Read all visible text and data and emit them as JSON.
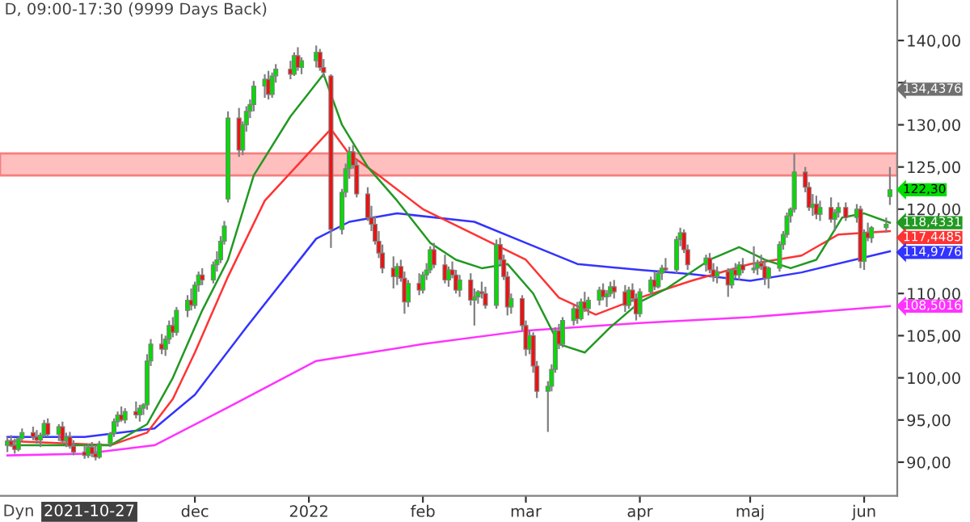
{
  "chart_data": {
    "type": "candlestick",
    "title": "D, 09:00-17:30 (9999 Days Back)",
    "x": [
      "2021-10-11",
      "2021-10-12",
      "2021-10-13",
      "2021-10-14",
      "2021-10-15",
      "2021-10-18",
      "2021-10-19",
      "2021-10-20",
      "2021-10-21",
      "2021-10-22",
      "2021-10-25",
      "2021-10-26",
      "2021-10-27",
      "2021-10-28",
      "2021-10-29",
      "2021-11-01",
      "2021-11-02",
      "2021-11-03",
      "2021-11-04",
      "2021-11-05",
      "2021-11-08",
      "2021-11-09",
      "2021-11-10",
      "2021-11-11",
      "2021-11-12",
      "2021-11-15",
      "2021-11-16",
      "2021-11-17",
      "2021-11-18",
      "2021-11-19",
      "2021-11-22",
      "2021-11-23",
      "2021-11-24",
      "2021-11-25",
      "2021-11-26",
      "2021-11-29",
      "2021-11-30",
      "2021-12-01",
      "2021-12-02",
      "2021-12-03",
      "2021-12-06",
      "2021-12-07",
      "2021-12-08",
      "2021-12-09",
      "2021-12-10",
      "2021-12-13",
      "2021-12-14",
      "2021-12-15",
      "2021-12-16",
      "2021-12-17",
      "2021-12-20",
      "2021-12-21",
      "2021-12-22",
      "2021-12-23",
      "2021-12-27",
      "2021-12-28",
      "2021-12-29",
      "2021-12-30",
      "2022-01-03",
      "2022-01-04",
      "2022-01-05",
      "2022-01-07",
      "2022-01-10",
      "2022-01-11",
      "2022-01-12",
      "2022-01-13",
      "2022-01-14",
      "2022-01-17",
      "2022-01-18",
      "2022-01-19",
      "2022-01-20",
      "2022-01-21",
      "2022-01-24",
      "2022-01-25",
      "2022-01-26",
      "2022-01-27",
      "2022-01-28",
      "2022-01-31",
      "2022-02-01",
      "2022-02-02",
      "2022-02-03",
      "2022-02-04",
      "2022-02-07",
      "2022-02-08",
      "2022-02-09",
      "2022-02-10",
      "2022-02-11",
      "2022-02-14",
      "2022-02-15",
      "2022-02-16",
      "2022-02-17",
      "2022-02-18",
      "2022-02-21",
      "2022-02-22",
      "2022-02-23",
      "2022-02-24",
      "2022-02-25",
      "2022-02-28",
      "2022-03-01",
      "2022-03-02",
      "2022-03-03",
      "2022-03-04",
      "2022-03-07",
      "2022-03-08",
      "2022-03-09",
      "2022-03-10",
      "2022-03-11",
      "2022-03-14",
      "2022-03-15",
      "2022-03-16",
      "2022-03-17",
      "2022-03-18",
      "2022-03-21",
      "2022-03-22",
      "2022-03-23",
      "2022-03-24",
      "2022-03-25",
      "2022-03-28",
      "2022-03-29",
      "2022-03-30",
      "2022-03-31",
      "2022-04-01",
      "2022-04-04",
      "2022-04-05",
      "2022-04-06",
      "2022-04-07",
      "2022-04-08",
      "2022-04-11",
      "2022-04-12",
      "2022-04-13",
      "2022-04-14",
      "2022-04-19",
      "2022-04-20",
      "2022-04-21",
      "2022-04-22",
      "2022-04-25",
      "2022-04-26",
      "2022-04-27",
      "2022-04-28",
      "2022-04-29",
      "2022-05-02",
      "2022-05-03",
      "2022-05-04",
      "2022-05-05",
      "2022-05-06",
      "2022-05-09",
      "2022-05-10",
      "2022-05-11",
      "2022-05-12",
      "2022-05-13",
      "2022-05-16",
      "2022-05-17",
      "2022-05-18",
      "2022-05-19",
      "2022-05-20",
      "2022-05-23",
      "2022-05-24",
      "2022-05-25",
      "2022-05-27",
      "2022-05-30",
      "2022-05-31",
      "2022-06-01",
      "2022-06-02",
      "2022-06-03",
      "2022-06-07",
      "2022-06-08"
    ],
    "ohlc": [
      [
        92.0,
        93.0,
        91.2,
        92.5
      ],
      [
        92.5,
        93.2,
        91.8,
        92.0
      ],
      [
        92.0,
        92.8,
        91.0,
        91.5
      ],
      [
        91.5,
        93.0,
        91.3,
        92.8
      ],
      [
        92.8,
        94.0,
        92.5,
        93.5
      ],
      [
        93.5,
        94.2,
        92.6,
        93.0
      ],
      [
        93.0,
        93.8,
        92.2,
        92.6
      ],
      [
        92.6,
        93.5,
        91.8,
        93.2
      ],
      [
        93.2,
        95.0,
        93.0,
        94.6
      ],
      [
        94.6,
        95.2,
        93.0,
        93.3
      ],
      [
        93.3,
        94.5,
        92.5,
        94.2
      ],
      [
        94.2,
        94.8,
        92.2,
        92.5
      ],
      [
        92.5,
        93.5,
        91.8,
        93.0
      ],
      [
        93.0,
        93.6,
        91.6,
        91.9
      ],
      [
        91.9,
        92.6,
        90.8,
        91.2
      ],
      [
        91.2,
        92.0,
        90.4,
        90.8
      ],
      [
        90.8,
        92.2,
        90.5,
        91.8
      ],
      [
        91.8,
        92.4,
        90.6,
        91.0
      ],
      [
        91.0,
        92.0,
        90.2,
        90.6
      ],
      [
        90.6,
        92.5,
        90.4,
        92.2
      ],
      [
        92.2,
        93.6,
        91.8,
        93.4
      ],
      [
        93.4,
        95.2,
        93.0,
        94.8
      ],
      [
        94.8,
        96.0,
        94.2,
        95.6
      ],
      [
        95.6,
        96.6,
        94.8,
        95.0
      ],
      [
        95.0,
        96.4,
        94.6,
        96.0
      ],
      [
        96.0,
        97.2,
        95.2,
        95.6
      ],
      [
        95.6,
        96.8,
        94.8,
        96.4
      ],
      [
        96.4,
        97.0,
        95.6,
        96.8
      ],
      [
        96.8,
        102.8,
        96.2,
        102.0
      ],
      [
        102.0,
        104.6,
        101.4,
        104.0
      ],
      [
        104.0,
        105.2,
        102.8,
        103.4
      ],
      [
        103.4,
        105.0,
        102.6,
        104.6
      ],
      [
        104.6,
        106.8,
        104.0,
        106.2
      ],
      [
        106.2,
        107.2,
        104.8,
        105.4
      ],
      [
        105.4,
        108.4,
        105.0,
        108.0
      ],
      [
        108.0,
        109.8,
        107.2,
        109.2
      ],
      [
        109.2,
        110.6,
        108.0,
        108.6
      ],
      [
        108.6,
        111.4,
        108.2,
        111.0
      ],
      [
        111.0,
        112.6,
        110.2,
        112.2
      ],
      [
        112.2,
        113.0,
        111.0,
        111.6
      ],
      [
        111.6,
        113.8,
        111.2,
        113.4
      ],
      [
        113.4,
        115.0,
        112.6,
        114.0
      ],
      [
        114.0,
        116.8,
        113.6,
        116.2
      ],
      [
        116.2,
        118.6,
        115.8,
        118.0
      ],
      [
        121.2,
        131.6,
        120.8,
        130.8
      ],
      [
        130.8,
        132.0,
        126.2,
        127.0
      ],
      [
        127.0,
        130.4,
        126.4,
        130.0
      ],
      [
        130.0,
        132.2,
        129.2,
        131.6
      ],
      [
        131.6,
        133.0,
        130.8,
        132.4
      ],
      [
        132.4,
        135.2,
        131.6,
        134.6
      ],
      [
        134.6,
        136.0,
        133.2,
        135.4
      ],
      [
        135.4,
        136.4,
        133.0,
        133.6
      ],
      [
        133.6,
        136.2,
        133.2,
        135.8
      ],
      [
        135.8,
        137.2,
        135.0,
        136.6
      ],
      [
        136.6,
        137.6,
        135.4,
        136.0
      ],
      [
        136.0,
        138.6,
        135.8,
        138.2
      ],
      [
        138.2,
        139.2,
        136.4,
        136.8
      ],
      [
        136.8,
        138.0,
        136.0,
        137.6
      ],
      [
        137.6,
        139.4,
        136.8,
        138.6
      ],
      [
        138.6,
        139.0,
        136.4,
        136.8
      ],
      [
        136.8,
        137.8,
        135.6,
        136.2
      ],
      [
        135.8,
        136.0,
        115.4,
        117.6
      ],
      [
        117.6,
        122.4,
        117.0,
        122.0
      ],
      [
        122.0,
        125.4,
        121.4,
        124.8
      ],
      [
        124.8,
        127.4,
        123.6,
        126.8
      ],
      [
        126.8,
        127.6,
        124.8,
        125.2
      ],
      [
        125.2,
        125.8,
        121.4,
        121.8
      ],
      [
        121.8,
        122.6,
        118.6,
        119.0
      ],
      [
        119.0,
        120.4,
        117.4,
        118.2
      ],
      [
        118.2,
        119.2,
        115.8,
        116.2
      ],
      [
        116.2,
        117.4,
        114.2,
        114.8
      ],
      [
        114.8,
        115.8,
        112.4,
        113.0
      ],
      [
        113.0,
        114.4,
        110.6,
        112.0
      ],
      [
        112.0,
        113.6,
        111.0,
        113.2
      ],
      [
        113.2,
        114.0,
        111.4,
        111.8
      ],
      [
        111.8,
        112.6,
        107.6,
        109.0
      ],
      [
        109.0,
        111.6,
        108.4,
        111.2
      ],
      [
        111.2,
        112.4,
        109.8,
        110.4
      ],
      [
        110.4,
        112.6,
        110.0,
        112.2
      ],
      [
        112.2,
        113.6,
        111.6,
        112.8
      ],
      [
        112.8,
        115.6,
        112.4,
        115.2
      ],
      [
        115.2,
        116.0,
        113.0,
        113.4
      ],
      [
        113.4,
        114.6,
        111.2,
        111.6
      ],
      [
        111.6,
        113.2,
        110.8,
        112.8
      ],
      [
        112.8,
        113.8,
        111.8,
        112.2
      ],
      [
        112.2,
        112.8,
        110.0,
        110.4
      ],
      [
        110.4,
        112.2,
        109.6,
        111.6
      ],
      [
        111.6,
        112.4,
        108.6,
        109.2
      ],
      [
        109.2,
        110.6,
        106.2,
        109.6
      ],
      [
        109.6,
        110.4,
        108.8,
        110.2
      ],
      [
        110.2,
        111.4,
        109.4,
        110.0
      ],
      [
        110.0,
        110.8,
        108.2,
        108.6
      ],
      [
        108.6,
        116.4,
        108.2,
        115.8
      ],
      [
        115.8,
        116.6,
        113.4,
        114.0
      ],
      [
        114.0,
        114.6,
        111.6,
        112.0
      ],
      [
        112.0,
        112.6,
        107.4,
        108.4
      ],
      [
        108.4,
        110.0,
        107.6,
        109.4
      ],
      [
        109.4,
        109.8,
        105.6,
        106.2
      ],
      [
        106.2,
        106.8,
        102.6,
        103.4
      ],
      [
        103.4,
        105.6,
        102.8,
        105.0
      ],
      [
        105.0,
        105.4,
        100.6,
        101.4
      ],
      [
        101.4,
        102.0,
        97.6,
        98.4
      ],
      [
        98.4,
        99.6,
        93.6,
        99.0
      ],
      [
        99.0,
        101.6,
        98.4,
        101.0
      ],
      [
        101.0,
        106.0,
        100.6,
        105.6
      ],
      [
        105.6,
        106.4,
        103.4,
        104.0
      ],
      [
        104.0,
        107.2,
        103.6,
        106.8
      ],
      [
        106.8,
        108.6,
        106.2,
        108.2
      ],
      [
        108.2,
        109.0,
        106.4,
        107.0
      ],
      [
        107.0,
        109.4,
        106.8,
        109.0
      ],
      [
        109.0,
        110.2,
        107.8,
        108.2
      ],
      [
        108.2,
        109.6,
        107.4,
        109.2
      ],
      [
        109.2,
        110.8,
        108.6,
        110.4
      ],
      [
        110.4,
        111.2,
        109.2,
        109.6
      ],
      [
        109.6,
        110.4,
        108.4,
        110.0
      ],
      [
        110.0,
        111.4,
        109.6,
        110.8
      ],
      [
        110.8,
        111.6,
        109.4,
        110.2
      ],
      [
        110.2,
        111.0,
        107.8,
        108.6
      ],
      [
        108.6,
        110.8,
        108.2,
        110.4
      ],
      [
        110.4,
        111.2,
        109.0,
        109.4
      ],
      [
        109.4,
        110.0,
        106.8,
        107.6
      ],
      [
        107.6,
        110.6,
        107.2,
        110.2
      ],
      [
        110.2,
        112.0,
        109.8,
        111.6
      ],
      [
        111.6,
        112.6,
        110.4,
        110.8
      ],
      [
        110.8,
        112.8,
        110.6,
        112.4
      ],
      [
        112.4,
        113.4,
        111.6,
        113.0
      ],
      [
        113.0,
        114.2,
        112.6,
        112.8
      ],
      [
        112.8,
        116.8,
        112.4,
        116.4
      ],
      [
        116.4,
        117.8,
        115.6,
        117.2
      ],
      [
        117.2,
        117.6,
        114.8,
        115.2
      ],
      [
        115.2,
        115.8,
        112.8,
        113.4
      ],
      [
        113.4,
        114.6,
        112.6,
        114.2
      ],
      [
        114.2,
        114.8,
        112.4,
        112.8
      ],
      [
        112.8,
        113.6,
        111.4,
        112.0
      ],
      [
        112.0,
        113.2,
        111.2,
        112.6
      ],
      [
        112.6,
        113.0,
        109.6,
        111.0
      ],
      [
        111.0,
        113.0,
        110.6,
        112.8
      ],
      [
        112.8,
        113.6,
        111.8,
        112.2
      ],
      [
        112.2,
        113.8,
        111.6,
        113.4
      ],
      [
        113.4,
        114.2,
        112.4,
        112.8
      ],
      [
        112.8,
        115.6,
        112.4,
        113.0
      ],
      [
        113.0,
        114.0,
        112.2,
        113.6
      ],
      [
        113.6,
        114.6,
        112.8,
        113.2
      ],
      [
        113.2,
        114.0,
        111.0,
        111.8
      ],
      [
        111.8,
        113.2,
        110.6,
        113.0
      ],
      [
        113.0,
        116.2,
        112.6,
        115.8
      ],
      [
        115.8,
        117.4,
        115.2,
        117.0
      ],
      [
        117.0,
        119.6,
        116.6,
        119.2
      ],
      [
        119.2,
        120.2,
        118.4,
        120.0
      ],
      [
        120.0,
        126.6,
        119.6,
        124.4
      ],
      [
        124.4,
        125.0,
        122.0,
        122.6
      ],
      [
        122.6,
        123.2,
        119.8,
        120.2
      ],
      [
        120.2,
        121.8,
        119.2,
        120.6
      ],
      [
        120.6,
        121.6,
        118.8,
        119.4
      ],
      [
        119.4,
        121.0,
        118.6,
        120.2
      ],
      [
        120.2,
        121.4,
        118.4,
        118.8
      ],
      [
        118.8,
        120.0,
        117.4,
        119.6
      ],
      [
        119.6,
        120.8,
        119.0,
        120.2
      ],
      [
        120.2,
        120.8,
        118.6,
        119.0
      ],
      [
        119.0,
        120.6,
        118.4,
        120.0
      ],
      [
        120.0,
        120.4,
        113.0,
        113.8
      ],
      [
        113.8,
        117.6,
        112.8,
        117.2
      ],
      [
        117.2,
        118.4,
        116.2,
        116.6
      ],
      [
        116.6,
        118.0,
        116.0,
        117.8
      ],
      [
        117.8,
        119.0,
        117.2,
        118.2
      ],
      [
        121.5,
        125.0,
        120.5,
        122.3
      ]
    ],
    "value_labels": [
      null,
      null,
      null,
      null,
      null,
      null,
      null,
      null,
      null,
      null,
      null,
      null,
      null,
      null,
      null,
      null,
      null,
      null,
      null,
      null,
      null,
      null,
      null,
      null,
      null,
      null,
      null,
      null,
      null,
      null,
      null,
      null,
      null,
      null,
      null,
      null,
      null,
      null,
      null,
      null,
      null,
      null,
      null,
      null,
      null,
      null,
      null,
      null,
      null,
      null,
      null,
      null,
      null,
      null,
      null,
      null,
      null,
      null,
      null,
      null,
      null,
      null,
      null,
      null,
      null,
      null,
      null,
      null,
      null,
      null,
      null,
      null,
      null,
      null,
      null,
      null,
      null,
      null,
      null,
      null,
      null,
      null,
      null,
      null,
      null,
      null,
      null,
      null,
      null,
      null,
      null,
      null,
      null,
      null,
      null,
      null,
      null,
      null,
      null,
      null,
      null,
      null,
      null,
      null,
      null,
      null,
      null,
      null,
      null,
      null,
      null,
      null,
      null,
      null,
      null,
      null,
      null,
      null,
      null,
      null,
      null,
      null,
      null,
      null,
      null,
      null,
      null,
      null,
      null,
      null,
      null,
      null,
      null,
      null,
      null,
      null,
      null,
      null,
      null,
      null,
      null,
      null,
      null,
      null,
      null,
      null,
      null,
      null,
      null,
      null,
      null,
      null,
      null,
      null,
      null,
      null,
      null,
      null,
      null,
      null,
      null,
      null,
      null,
      null,
      null,
      "122,30"
    ],
    "series": [
      {
        "type": "line",
        "color": "#ff33ff",
        "x": [
          "2021-10-11",
          "2021-11-01",
          "2021-11-20",
          "2021-12-10",
          "2022-01-03",
          "2022-02-01",
          "2022-03-01",
          "2022-04-01",
          "2022-05-01",
          "2022-06-08"
        ],
        "values": [
          90.8,
          91.0,
          92.0,
          96.5,
          102.0,
          104.0,
          105.6,
          106.5,
          107.2,
          108.5
        ],
        "value_labels": [
          null,
          null,
          null,
          null,
          null,
          null,
          null,
          null,
          null,
          "108,5016"
        ]
      },
      {
        "type": "line",
        "color": "#3333ff",
        "x": [
          "2021-10-11",
          "2021-11-01",
          "2021-11-20",
          "2021-12-01",
          "2021-12-15",
          "2022-01-03",
          "2022-01-12",
          "2022-01-25",
          "2022-02-15",
          "2022-03-01",
          "2022-03-15",
          "2022-04-01",
          "2022-04-15",
          "2022-05-01",
          "2022-05-15",
          "2022-06-08"
        ],
        "values": [
          93.0,
          93.0,
          94.0,
          98.0,
          106.0,
          116.5,
          118.5,
          119.5,
          118.5,
          116.0,
          113.5,
          112.8,
          112.3,
          111.5,
          112.5,
          115.0
        ],
        "value_labels": [
          null,
          null,
          null,
          null,
          null,
          null,
          null,
          null,
          null,
          null,
          null,
          null,
          null,
          null,
          null,
          "114,9776"
        ]
      },
      {
        "type": "line",
        "color": "#ff3333",
        "x": [
          "2021-10-11",
          "2021-11-08",
          "2021-11-18",
          "2021-11-25",
          "2021-12-01",
          "2021-12-10",
          "2021-12-20",
          "2022-01-07",
          "2022-01-12",
          "2022-01-20",
          "2022-02-01",
          "2022-02-15",
          "2022-03-01",
          "2022-03-10",
          "2022-03-20",
          "2022-04-01",
          "2022-04-15",
          "2022-05-01",
          "2022-05-15",
          "2022-05-25",
          "2022-06-08"
        ],
        "values": [
          92.5,
          92.0,
          93.5,
          97.5,
          103.0,
          112.0,
          121.0,
          129.5,
          126.5,
          124.0,
          120.0,
          117.0,
          114.0,
          109.5,
          107.5,
          109.5,
          111.5,
          113.5,
          114.5,
          117.0,
          117.4
        ],
        "value_labels": [
          null,
          null,
          null,
          null,
          null,
          null,
          null,
          null,
          null,
          null,
          null,
          null,
          null,
          null,
          null,
          null,
          null,
          null,
          null,
          null,
          "117,4485"
        ]
      },
      {
        "type": "line",
        "color": "#229922",
        "x": [
          "2021-10-11",
          "2021-11-08",
          "2021-11-18",
          "2021-11-25",
          "2021-12-03",
          "2021-12-10",
          "2021-12-17",
          "2021-12-27",
          "2022-01-05",
          "2022-01-10",
          "2022-01-17",
          "2022-01-25",
          "2022-02-03",
          "2022-02-10",
          "2022-02-17",
          "2022-02-24",
          "2022-03-03",
          "2022-03-10",
          "2022-03-17",
          "2022-03-24",
          "2022-04-01",
          "2022-04-08",
          "2022-04-20",
          "2022-04-28",
          "2022-05-05",
          "2022-05-12",
          "2022-05-19",
          "2022-05-26",
          "2022-06-01",
          "2022-06-08"
        ],
        "values": [
          92.0,
          92.0,
          94.5,
          100.0,
          108.0,
          114.0,
          124.0,
          131.0,
          136.0,
          130.0,
          125.0,
          121.0,
          116.0,
          114.0,
          113.0,
          113.5,
          110.0,
          104.0,
          103.0,
          106.0,
          109.0,
          110.5,
          114.0,
          115.5,
          114.0,
          113.0,
          114.0,
          119.0,
          119.5,
          118.4
        ],
        "value_labels": [
          null,
          null,
          null,
          null,
          null,
          null,
          null,
          null,
          null,
          null,
          null,
          null,
          null,
          null,
          null,
          null,
          null,
          null,
          null,
          null,
          null,
          null,
          null,
          null,
          null,
          null,
          null,
          null,
          null,
          "118,4331"
        ]
      }
    ],
    "bands": [
      {
        "axis": "y",
        "from": 124.0,
        "to": 126.6,
        "color": "#ff8080"
      }
    ],
    "annotations": [
      "134,4376",
      "2021-10-27",
      "Dyn"
    ],
    "xlim": [
      "2021-10-09",
      "2022-06-10"
    ],
    "xticks": [
      {
        "value": "2021-12-01",
        "label": "dec"
      },
      {
        "value": "2022-01-01",
        "label": "2022"
      },
      {
        "value": "2022-02-01",
        "label": "feb"
      },
      {
        "value": "2022-03-01",
        "label": "mar"
      },
      {
        "value": "2022-04-01",
        "label": "apr"
      },
      {
        "value": "2022-05-01",
        "label": "maj"
      },
      {
        "value": "2022-06-01",
        "label": "jun"
      }
    ],
    "ylim": [
      86.0,
      144.8
    ],
    "yticks": [
      {
        "value": 90,
        "label": "90,00"
      },
      {
        "value": 95,
        "label": "95,00"
      },
      {
        "value": 100,
        "label": "100,00"
      },
      {
        "value": 105,
        "label": "105,00"
      },
      {
        "value": 110,
        "label": "110,00"
      },
      {
        "value": 115,
        "label": null
      },
      {
        "value": 120,
        "label": "120,00"
      },
      {
        "value": 125,
        "label": "125,00"
      },
      {
        "value": 130,
        "label": "130,00"
      },
      {
        "value": 135,
        "label": null
      },
      {
        "value": 140,
        "label": "140,00"
      }
    ],
    "grid": false
  }
}
